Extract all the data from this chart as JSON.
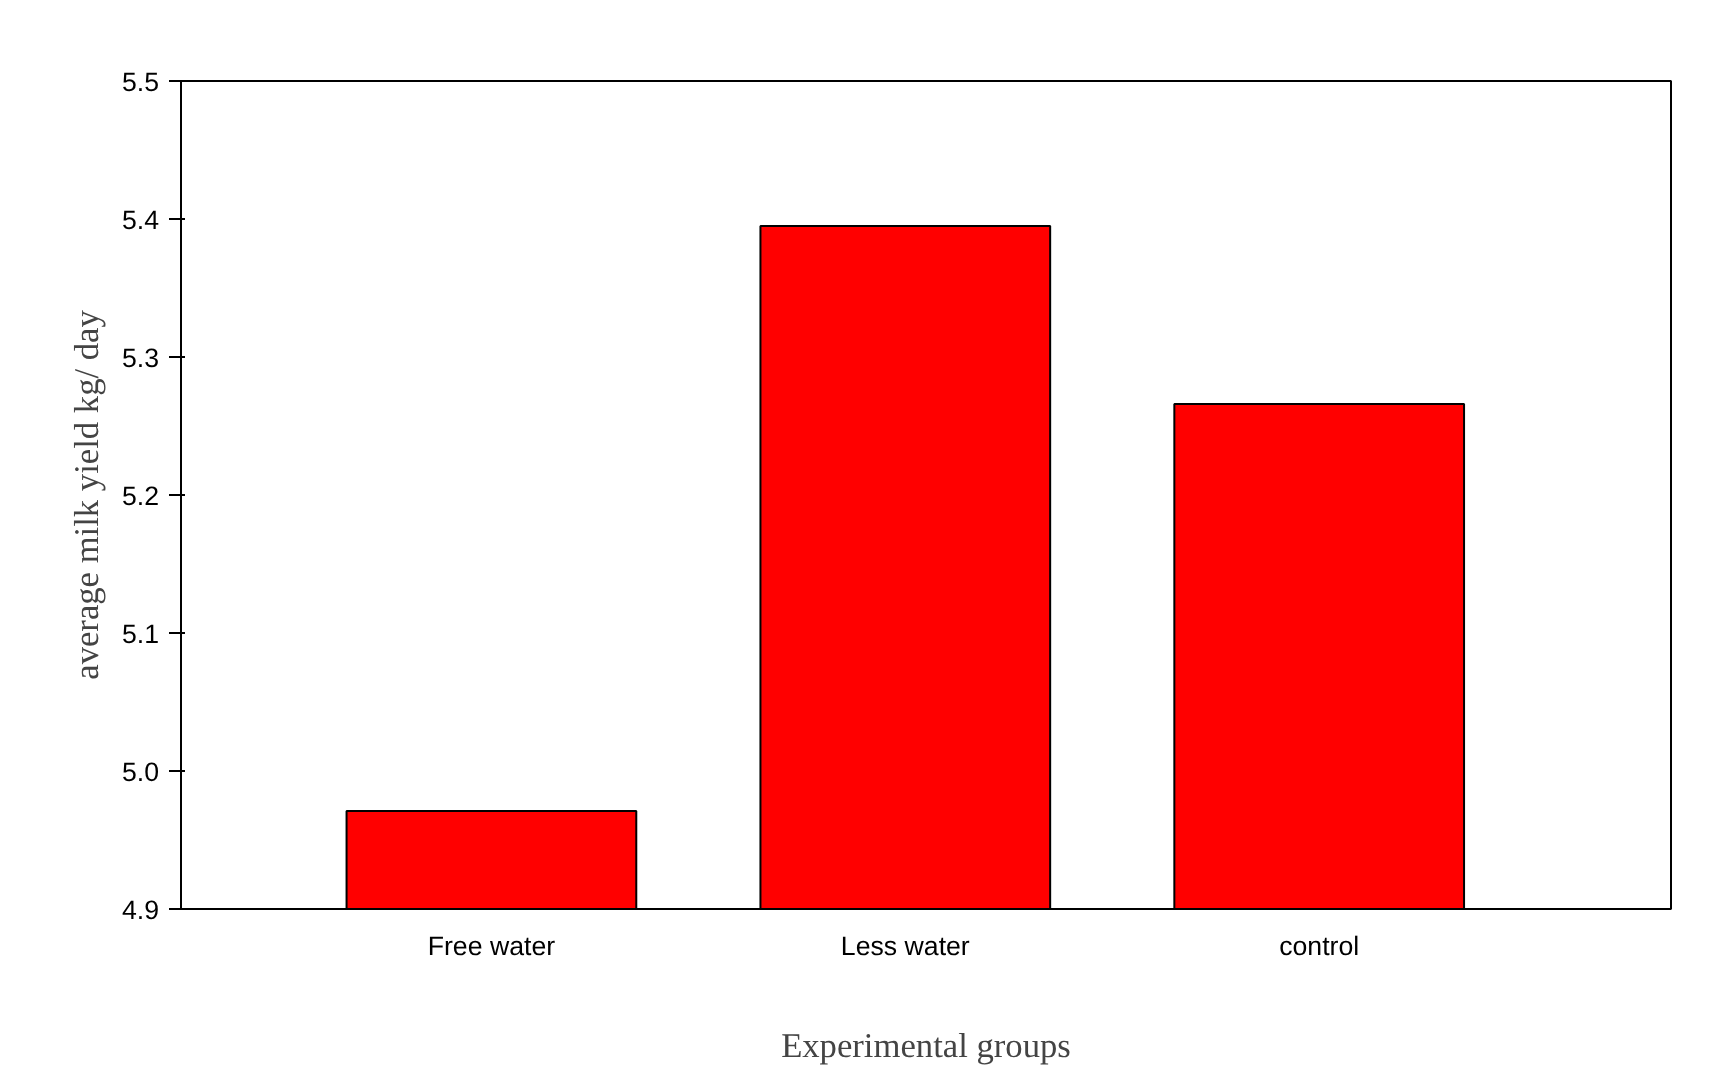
{
  "chart_data": {
    "type": "bar",
    "xlabel": "Experimental groups",
    "ylabel": "average milk yield kg/ day",
    "categories": [
      "Free water",
      "Less water",
      "control"
    ],
    "values": [
      4.971,
      5.395,
      5.266
    ],
    "color": "#ff0000",
    "ylim": [
      4.9,
      5.5
    ],
    "yticks": [
      4.9,
      {
        "value": 5.0,
        "label": "5.0"
      },
      5.1,
      5.2,
      5.3,
      5.4,
      5.5
    ],
    "grid": false
  }
}
